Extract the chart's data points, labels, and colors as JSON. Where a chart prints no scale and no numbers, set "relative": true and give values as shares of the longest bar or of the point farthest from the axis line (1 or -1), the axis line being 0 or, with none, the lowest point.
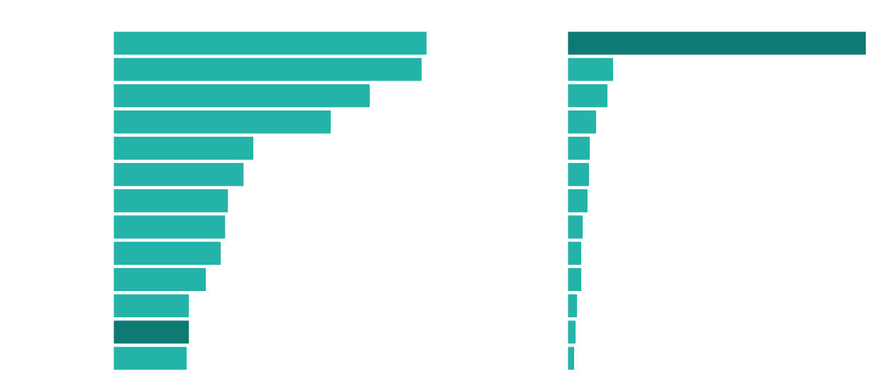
{
  "chart_data": [
    {
      "type": "bar",
      "orientation": "horizontal",
      "relative": true,
      "categories": [
        null,
        null,
        null,
        null,
        null,
        null,
        null,
        null,
        null,
        null,
        null,
        null,
        null
      ],
      "values": [
        1,
        0.984,
        0.818,
        0.693,
        0.445,
        0.414,
        0.364,
        0.355,
        0.341,
        0.293,
        0.239,
        0.239,
        0.232
      ],
      "colors": [
        "#23b3a9",
        "#23b3a9",
        "#23b3a9",
        "#23b3a9",
        "#23b3a9",
        "#23b3a9",
        "#23b3a9",
        "#23b3a9",
        "#23b3a9",
        "#23b3a9",
        "#23b3a9",
        "#0e7a74",
        "#23b3a9"
      ]
    },
    {
      "type": "bar",
      "orientation": "horizontal",
      "relative": true,
      "categories": [
        null,
        null,
        null,
        null,
        null,
        null,
        null,
        null,
        null,
        null,
        null,
        null,
        null
      ],
      "values": [
        1,
        0.15,
        0.131,
        0.093,
        0.072,
        0.069,
        0.064,
        0.048,
        0.043,
        0.043,
        0.029,
        0.024,
        0.019
      ],
      "colors": [
        "#0e7a74",
        "#23b3a9",
        "#23b3a9",
        "#23b3a9",
        "#23b3a9",
        "#23b3a9",
        "#23b3a9",
        "#23b3a9",
        "#23b3a9",
        "#23b3a9",
        "#23b3a9",
        "#23b3a9",
        "#23b3a9"
      ]
    }
  ]
}
